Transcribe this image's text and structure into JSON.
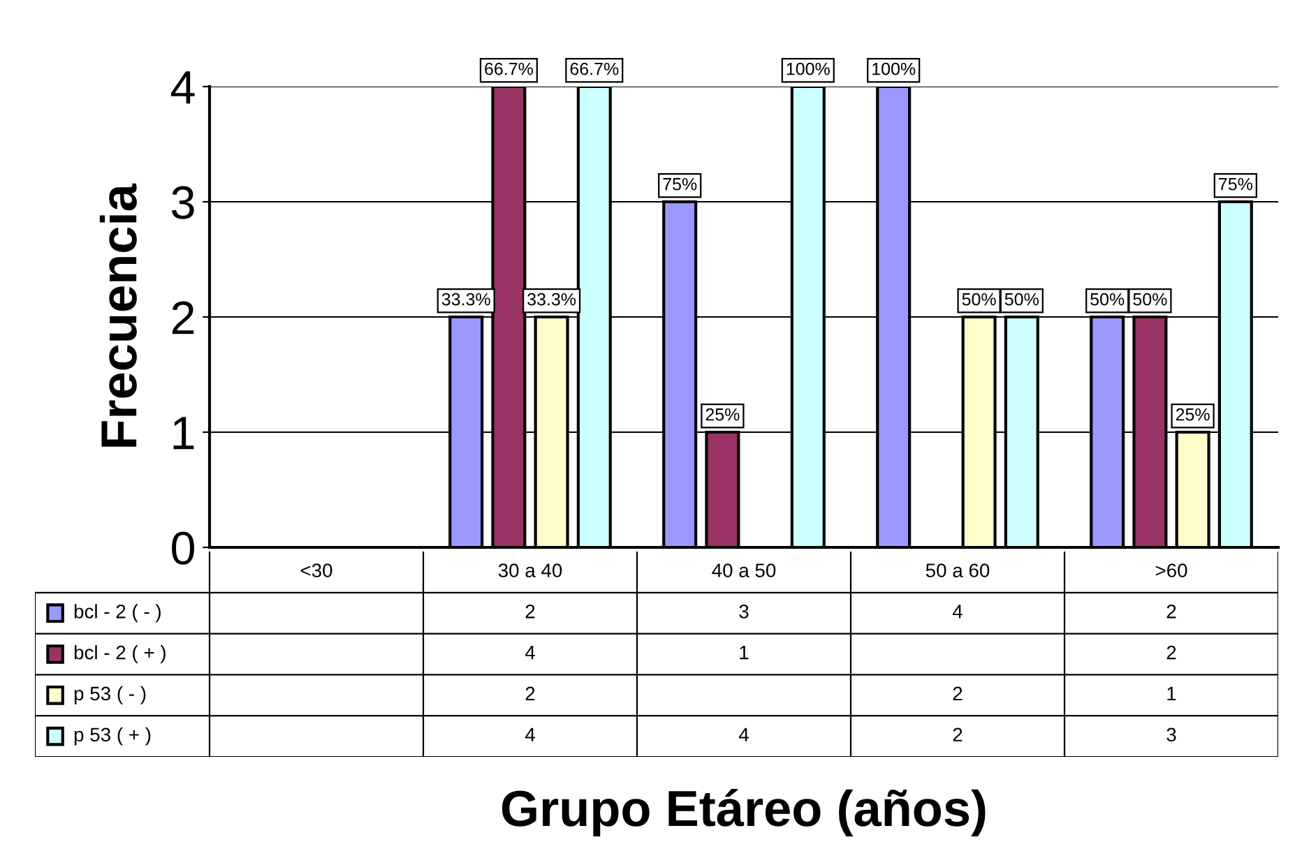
{
  "chart_data": {
    "type": "bar",
    "xlabel": "Grupo Etáreo (años)",
    "ylabel": "Frecuencia",
    "categories": [
      "<30",
      "30 a 40",
      "40 a 50",
      "50 a 60",
      ">60"
    ],
    "series": [
      {
        "name": "bcl - 2 ( - )",
        "color": "#9999ff",
        "values": [
          null,
          2,
          3,
          4,
          2
        ]
      },
      {
        "name": "bcl - 2 ( + )",
        "color": "#993366",
        "values": [
          null,
          4,
          1,
          null,
          2
        ]
      },
      {
        "name": "p 53 ( - )",
        "color": "#ffffcc",
        "values": [
          null,
          2,
          null,
          2,
          1
        ]
      },
      {
        "name": "p 53 ( + )",
        "color": "#ccffff",
        "values": [
          null,
          4,
          4,
          2,
          3
        ]
      }
    ],
    "annotations": [
      "33.3%",
      "66.7%",
      "33.3%",
      "66.7%",
      "75%",
      "25%",
      "100%",
      "100%",
      "50%",
      "50%",
      "50%",
      "50%",
      "25%",
      "75%"
    ],
    "ylim": [
      0,
      4
    ],
    "yticks": [
      0,
      1,
      2,
      3,
      4
    ],
    "grid": "y",
    "legend": "bottom",
    "data_labels": true
  }
}
